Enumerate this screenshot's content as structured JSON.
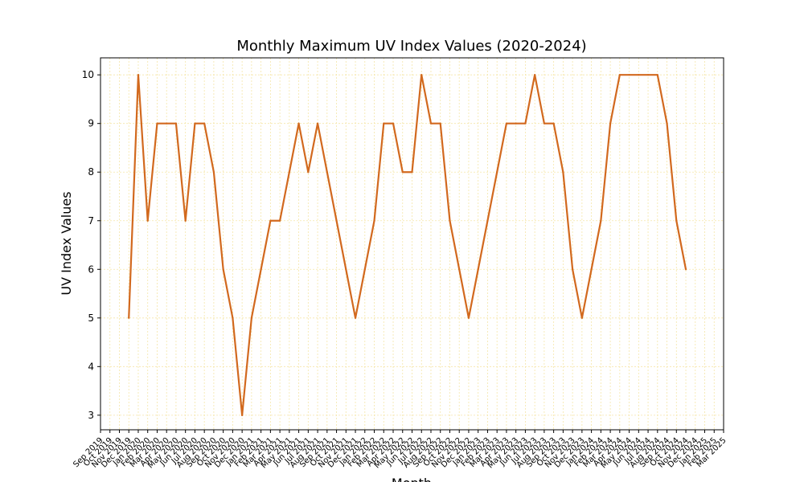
{
  "chart_data": {
    "type": "line",
    "title": "Monthly Maximum UV Index Values (2020-2024)",
    "xlabel": "Month",
    "ylabel": "UV Index Values",
    "grid": true,
    "line_color": "#d2691e",
    "grid_color": "#f5e6a8",
    "yticks": [
      3,
      4,
      5,
      6,
      7,
      8,
      9,
      10
    ],
    "ylim": [
      2.7,
      10.35
    ],
    "xlim": [
      "2019-09",
      "2025-03"
    ],
    "xtick_labels": [
      "Sep 2019",
      "Oct 2019",
      "Nov 2019",
      "Dec 2019",
      "Jan 2020",
      "Feb 2020",
      "Mar 2020",
      "Apr 2020",
      "May 2020",
      "Jun 2020",
      "Jul 2020",
      "Aug 2020",
      "Sep 2020",
      "Oct 2020",
      "Nov 2020",
      "Dec 2020",
      "Jan 2021",
      "Feb 2021",
      "Mar 2021",
      "Apr 2021",
      "May 2021",
      "Jun 2021",
      "Jul 2021",
      "Aug 2021",
      "Sep 2021",
      "Oct 2021",
      "Nov 2021",
      "Dec 2021",
      "Jan 2022",
      "Feb 2022",
      "Mar 2022",
      "Apr 2022",
      "May 2022",
      "Jun 2022",
      "Jul 2022",
      "Aug 2022",
      "Sep 2022",
      "Oct 2022",
      "Nov 2022",
      "Dec 2022",
      "Jan 2023",
      "Feb 2023",
      "Mar 2023",
      "Apr 2023",
      "May 2023",
      "Jun 2023",
      "Jul 2023",
      "Aug 2023",
      "Sep 2023",
      "Oct 2023",
      "Nov 2023",
      "Dec 2023",
      "Jan 2024",
      "Feb 2024",
      "Mar 2024",
      "Apr 2024",
      "May 2024",
      "Jun 2024",
      "Jul 2024",
      "Aug 2024",
      "Sep 2024",
      "Oct 2024",
      "Nov 2024",
      "Dec 2024",
      "Jan 2025",
      "Feb 2025",
      "Mar 2025"
    ],
    "x": [
      "2019-12",
      "2020-01",
      "2020-02",
      "2020-03",
      "2020-04",
      "2020-05",
      "2020-06",
      "2020-07",
      "2020-08",
      "2020-09",
      "2020-10",
      "2020-11",
      "2020-12",
      "2021-01",
      "2021-02",
      "2021-03",
      "2021-04",
      "2021-05",
      "2021-06",
      "2021-07",
      "2021-08",
      "2021-09",
      "2021-10",
      "2021-11",
      "2021-12",
      "2022-01",
      "2022-02",
      "2022-03",
      "2022-04",
      "2022-05",
      "2022-06",
      "2022-07",
      "2022-08",
      "2022-09",
      "2022-10",
      "2022-11",
      "2022-12",
      "2023-01",
      "2023-02",
      "2023-03",
      "2023-04",
      "2023-05",
      "2023-06",
      "2023-07",
      "2023-08",
      "2023-09",
      "2023-10",
      "2023-11",
      "2023-12",
      "2024-01",
      "2024-02",
      "2024-03",
      "2024-04",
      "2024-05",
      "2024-06",
      "2024-07",
      "2024-08",
      "2024-09",
      "2024-10",
      "2024-11"
    ],
    "values": [
      5,
      10,
      7,
      9,
      9,
      9,
      7,
      9,
      9,
      8,
      6,
      5,
      3,
      5,
      6,
      7,
      7,
      8,
      9,
      8,
      9,
      8,
      7,
      6,
      5,
      6,
      7,
      9,
      9,
      8,
      8,
      10,
      9,
      9,
      7,
      6,
      5,
      6,
      7,
      8,
      9,
      9,
      9,
      10,
      9,
      9,
      8,
      6,
      5,
      6,
      7,
      9,
      10,
      10,
      10,
      10,
      10,
      9,
      7,
      6
    ]
  }
}
